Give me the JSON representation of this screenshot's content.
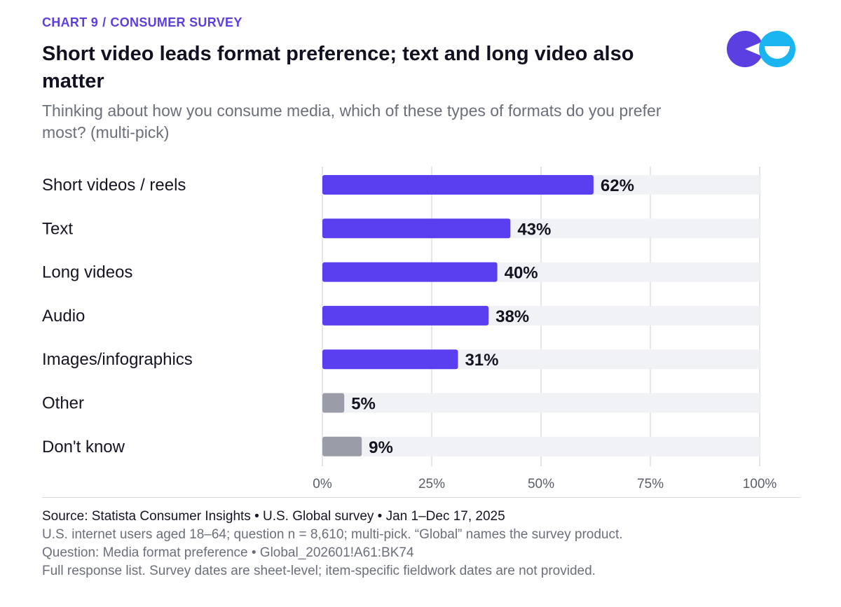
{
  "header": {
    "kicker_chart": "CHART 9",
    "kicker_sep": "/",
    "kicker_topic": "CONSUMER SURVEY",
    "title": "Short video leads format preference; text and long video also matter",
    "subtitle": "Thinking about how you consume media, which of these types of formats do you prefer most? (multi-pick)"
  },
  "colors": {
    "accent": "#5b3fe0",
    "bar_primary": "#5a3ff0",
    "bar_secondary": "#9a9ca8",
    "track": "#f1f2f5",
    "logo_purple": "#5b3fe0",
    "logo_cyan": "#1ab4f0"
  },
  "chart_data": {
    "type": "bar",
    "orientation": "horizontal",
    "categories": [
      "Short videos / reels",
      "Text",
      "Long videos",
      "Audio",
      "Images/infographics",
      "Other",
      "Don't know"
    ],
    "values": [
      62,
      43,
      40,
      38,
      31,
      5,
      9
    ],
    "value_labels": [
      "62%",
      "43%",
      "40%",
      "38%",
      "31%",
      "5%",
      "9%"
    ],
    "highlight": [
      true,
      true,
      true,
      true,
      true,
      false,
      false
    ],
    "xlim": [
      0,
      100
    ],
    "xticks": [
      0,
      25,
      50,
      75,
      100
    ],
    "xtick_labels": [
      "0%",
      "25%",
      "50%",
      "75%",
      "100%"
    ],
    "grid": true
  },
  "footer": {
    "source": "Source: Statista Consumer Insights • U.S. Global survey • Jan 1–Dec 17, 2025",
    "note1": "U.S. internet users aged 18–64; question n = 8,610; multi-pick. “Global” names the survey product.",
    "note2": "Question: Media format preference • Global_202601!A61:BK74",
    "note3": "Full response list. Survey dates are sheet-level; item-specific fieldwork dates are not provided."
  }
}
